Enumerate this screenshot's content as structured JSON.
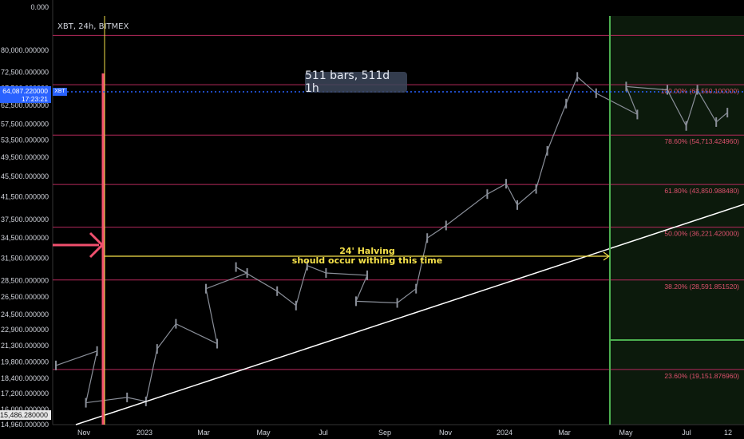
{
  "symbol": "XBT, 24h, BITMEX",
  "measure_label": "511 bars, 511d 1h",
  "halving_title": "24' Halving",
  "halving_text": "should occur withing this time",
  "price_tag": {
    "symbol": "XBT",
    "price": "64,087.220000",
    "countdown": "17:23:21"
  },
  "last_low_tag": "15,486.280000",
  "colors": {
    "background": "#000000",
    "candle": "#8a8f99",
    "fib": "#b5295b",
    "trendline": "#ffffff",
    "vline_red": "#f0506e",
    "vline_yellow": "#f5e14a",
    "vline_green": "#4caf50",
    "price_line": "#2962ff"
  },
  "chart_data": {
    "type": "line",
    "title": "XBT, 24h, BITMEX",
    "xlabel": "",
    "ylabel": "",
    "scale": "log",
    "ylim": [
      14960,
      90000
    ],
    "y_ticks": [
      "0.000",
      "80,000.000000",
      "72,500.000000",
      "67,500.000000",
      "62,500.000000",
      "57,500.000000",
      "53,500.000000",
      "49,500.000000",
      "45,500.000000",
      "41,500.000000",
      "37,500.000000",
      "34,500.000000",
      "31,500.000000",
      "28,500.000000",
      "26,500.000000",
      "24,500.000000",
      "22,900.000000",
      "21,300.000000",
      "19,800.000000",
      "18,400.000000",
      "17,200.000000",
      "16,000.000000",
      "14,960.000000"
    ],
    "x_ticks": [
      "Nov",
      "2023",
      "Mar",
      "May",
      "Jul",
      "Sep",
      "Nov",
      "2024",
      "Mar",
      "May",
      "Jul",
      "12"
    ],
    "fib_levels": [
      {
        "label": "100.00% (68,550.100000)",
        "value": 68550.1
      },
      {
        "label": "78.60% (54,713.424960)",
        "value": 54713.42496
      },
      {
        "label": "61.80% (43,850.988480)",
        "value": 43850.98848
      },
      {
        "label": "50.00% (36,221.420000)",
        "value": 36221.42
      },
      {
        "label": "38.20% (28,591.851520)",
        "value": 28591.85152
      },
      {
        "label": "23.60% (19,151.876960)",
        "value": 19151.87696
      }
    ],
    "price_series": {
      "name": "XBT",
      "points": [
        [
          "Oct 2022",
          19500
        ],
        [
          "Nov 2022",
          20800
        ],
        [
          "Nov 2022",
          16500
        ],
        [
          "Dec 2022",
          16900
        ],
        [
          "Jan 2023",
          16600
        ],
        [
          "Jan 2023",
          21000
        ],
        [
          "Feb 2023",
          23500
        ],
        [
          "Mar 2023",
          21500
        ],
        [
          "Mar 2023",
          27500
        ],
        [
          "Apr 2023",
          29500
        ],
        [
          "Apr 2023",
          30300
        ],
        [
          "May 2023",
          27200
        ],
        [
          "Jun 2023",
          25500
        ],
        [
          "Jun 2023",
          30500
        ],
        [
          "Jul 2023",
          29500
        ],
        [
          "Aug 2023",
          29200
        ],
        [
          "Aug 2023",
          26000
        ],
        [
          "Sep 2023",
          25800
        ],
        [
          "Oct 2023",
          27500
        ],
        [
          "Oct 2023",
          34500
        ],
        [
          "Nov 2023",
          36500
        ],
        [
          "Dec 2023",
          42000
        ],
        [
          "Jan 2024",
          44000
        ],
        [
          "Jan 2024",
          40000
        ],
        [
          "Feb 2024",
          43000
        ],
        [
          "Feb 2024",
          51000
        ],
        [
          "Mar 2024",
          63000
        ],
        [
          "Mar 2024",
          71000
        ],
        [
          "Apr 2024",
          66000
        ],
        [
          "May 2024",
          60000
        ],
        [
          "May 2024",
          68000
        ],
        [
          "Jun 2024",
          67000
        ],
        [
          "Jul 2024",
          57000
        ],
        [
          "Jul 2024",
          67000
        ],
        [
          "Aug 2024",
          58000
        ],
        [
          "Aug 2024",
          60500
        ]
      ]
    },
    "trendline": {
      "from": [
        "Oct 2022",
        14960
      ],
      "to": [
        "Aug 2024",
        38000
      ]
    },
    "halving_range": {
      "from": "Nov 2022",
      "to": "Apr 2024",
      "level": 31500
    },
    "current_price": 64087.22
  }
}
